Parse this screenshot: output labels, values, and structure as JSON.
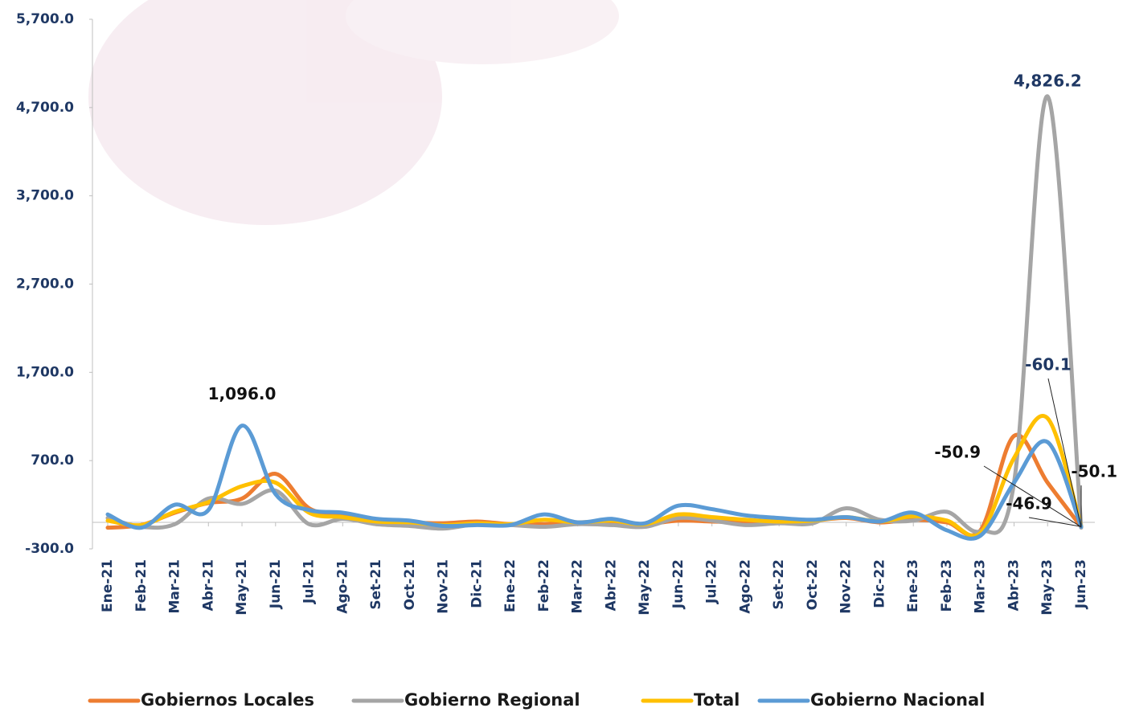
{
  "chart_data": {
    "type": "line",
    "categories": [
      "Ene-21",
      "Feb-21",
      "Mar-21",
      "Abr-21",
      "May-21",
      "Jun-21",
      "Jul-21",
      "Ago-21",
      "Set-21",
      "Oct-21",
      "Nov-21",
      "Dic-21",
      "Ene-22",
      "Feb-22",
      "Mar-22",
      "Abr-22",
      "May-22",
      "Jun-22",
      "Jul-22",
      "Ago-22",
      "Set-22",
      "Oct-22",
      "Nov-22",
      "Dic-22",
      "Ene-23",
      "Feb-23",
      "Mar-23",
      "Abr-23",
      "May-23",
      "Jun-23"
    ],
    "ylim": [
      -300,
      5700
    ],
    "yticks": [
      {
        "value": -300,
        "label": "-300.0"
      },
      {
        "value": 700,
        "label": "700.0"
      },
      {
        "value": 1700,
        "label": "1,700.0"
      },
      {
        "value": 2700,
        "label": "2,700.0"
      },
      {
        "value": 3700,
        "label": "3,700.0"
      },
      {
        "value": 4700,
        "label": "4,700.0"
      },
      {
        "value": 5700,
        "label": "5,700.0"
      }
    ],
    "series": [
      {
        "name": "Gobiernos Locales",
        "color": "#ed7d31",
        "values": [
          -60,
          -30,
          110,
          220,
          270,
          550,
          160,
          90,
          20,
          0,
          -10,
          10,
          -20,
          -20,
          0,
          0,
          -20,
          20,
          10,
          0,
          0,
          20,
          50,
          0,
          30,
          0,
          -90,
          980,
          450,
          -50.9
        ],
        "value_labels": [
          null,
          null,
          null,
          null,
          null,
          null,
          null,
          null,
          null,
          null,
          null,
          null,
          null,
          null,
          null,
          null,
          null,
          null,
          null,
          null,
          null,
          null,
          null,
          null,
          null,
          null,
          null,
          null,
          null,
          "-50.9"
        ]
      },
      {
        "name": "Gobierno Regional",
        "color": "#a5a5a5",
        "values": [
          50,
          -50,
          -20,
          270,
          210,
          360,
          -20,
          40,
          -20,
          -40,
          -70,
          -20,
          -30,
          -50,
          -20,
          -30,
          -50,
          50,
          20,
          -30,
          -10,
          -10,
          160,
          30,
          20,
          120,
          -100,
          450,
          4826.2,
          -60.1
        ],
        "value_labels": [
          null,
          null,
          null,
          null,
          null,
          null,
          null,
          null,
          null,
          null,
          null,
          null,
          null,
          null,
          null,
          null,
          null,
          null,
          null,
          null,
          null,
          null,
          null,
          null,
          null,
          null,
          null,
          null,
          "4,826.2",
          "-60.1"
        ]
      },
      {
        "name": "Total",
        "color": "#ffc000",
        "values": [
          20,
          -30,
          120,
          230,
          410,
          450,
          110,
          60,
          10,
          0,
          -30,
          -10,
          -20,
          30,
          0,
          20,
          -20,
          90,
          60,
          30,
          10,
          20,
          60,
          10,
          70,
          20,
          -120,
          730,
          1180,
          -46.9
        ],
        "value_labels": [
          null,
          null,
          null,
          null,
          null,
          null,
          null,
          null,
          null,
          null,
          null,
          null,
          null,
          null,
          null,
          null,
          null,
          null,
          null,
          null,
          null,
          null,
          null,
          null,
          null,
          null,
          null,
          null,
          null,
          "-46.9"
        ]
      },
      {
        "name": "Gobierno Nacional",
        "color": "#5b9bd5",
        "values": [
          90,
          -60,
          200,
          140,
          1096,
          320,
          140,
          110,
          40,
          20,
          -40,
          -30,
          -30,
          90,
          0,
          40,
          -10,
          190,
          150,
          80,
          50,
          30,
          60,
          10,
          110,
          -90,
          -150,
          450,
          910,
          -50.1
        ],
        "value_labels": [
          null,
          null,
          null,
          null,
          "1,096.0",
          null,
          null,
          null,
          null,
          null,
          null,
          null,
          null,
          null,
          null,
          null,
          null,
          null,
          null,
          null,
          null,
          null,
          null,
          null,
          null,
          null,
          null,
          null,
          null,
          "-50.1"
        ]
      }
    ]
  }
}
